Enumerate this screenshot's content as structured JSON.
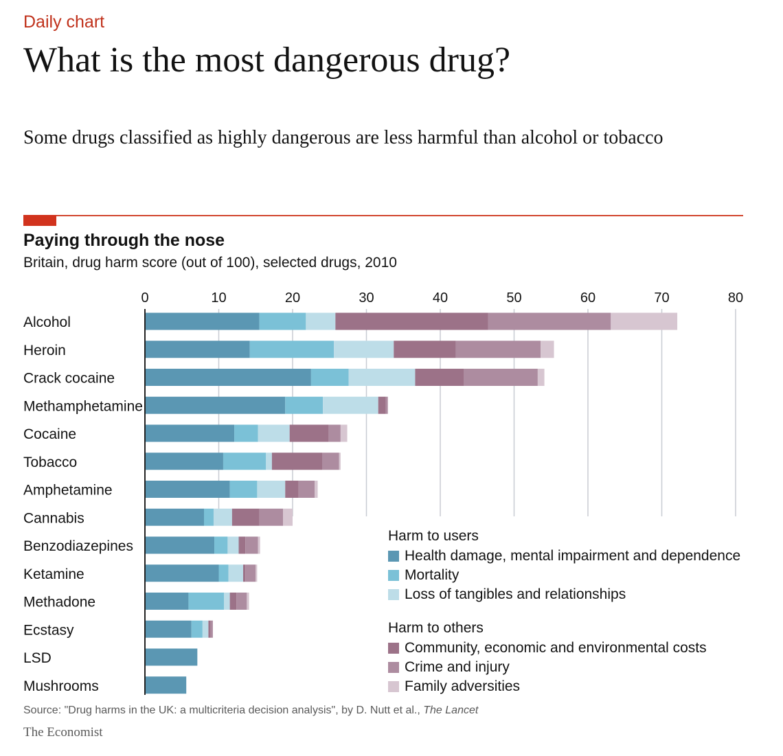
{
  "kicker": "Daily chart",
  "headline": "What is the most dangerous drug?",
  "standfirst": "Some drugs classified as highly dangerous are less harmful than alcohol or tobacco",
  "source": {
    "prefix": "Source: \"Drug harms in the UK: a multicriteria decision analysis\", by D. Nutt et al., ",
    "journal": "The Lancet"
  },
  "brand": "The Economist",
  "colors": {
    "accent": "#c0311b",
    "health": "#5b97b3",
    "mortality": "#7bc1d7",
    "tangibles": "#bddde8",
    "community": "#9c7288",
    "crime": "#ad8ca0",
    "family": "#d7c6d1",
    "grid": "#c8ccd2"
  },
  "chart_data": {
    "type": "bar",
    "orientation": "horizontal",
    "stacked": true,
    "title": "Paying through the nose",
    "subtitle": "Britain, drug harm score (out of 100), selected drugs, 2010",
    "xlim": [
      0,
      80
    ],
    "xticks": [
      "0",
      "10",
      "20",
      "30",
      "40",
      "50",
      "60",
      "70",
      "80"
    ],
    "grid": true,
    "legend_position": "bottom-right",
    "categories": [
      "Alcohol",
      "Heroin",
      "Crack cocaine",
      "Methamphetamine",
      "Cocaine",
      "Tobacco",
      "Amphetamine",
      "Cannabis",
      "Benzodiazepines",
      "Ketamine",
      "Methadone",
      "Ecstasy",
      "LSD",
      "Mushrooms"
    ],
    "groups": [
      {
        "name": "Harm to users",
        "series": [
          {
            "name": "Health damage, mental impairment and dependence",
            "color_key": "health",
            "values": [
              15.5,
              14.2,
              22.5,
              19.0,
              12.1,
              10.6,
              11.5,
              8.0,
              9.4,
              10.0,
              5.9,
              6.3,
              7.1,
              5.6
            ]
          },
          {
            "name": "Mortality",
            "color_key": "mortality",
            "values": [
              6.3,
              11.4,
              5.1,
              5.1,
              3.2,
              5.8,
              3.7,
              1.3,
              1.8,
              1.3,
              4.8,
              1.5,
              0.0,
              0.0
            ]
          },
          {
            "name": "Loss of tangibles and relationships",
            "color_key": "tangibles",
            "values": [
              4.0,
              8.1,
              9.0,
              7.5,
              4.3,
              0.8,
              3.8,
              2.5,
              1.5,
              2.0,
              0.8,
              0.8,
              0.0,
              0.0
            ]
          }
        ]
      },
      {
        "name": "Harm to others",
        "series": [
          {
            "name": "Community, economic and environmental costs",
            "color_key": "community",
            "values": [
              20.7,
              8.4,
              6.6,
              1.0,
              5.3,
              6.8,
              1.8,
              3.7,
              0.9,
              0.3,
              0.9,
              0.3,
              0.0,
              0.0
            ]
          },
          {
            "name": "Crime and injury",
            "color_key": "crime",
            "values": [
              16.6,
              11.5,
              10.0,
              0.3,
              1.6,
              2.3,
              2.2,
              3.2,
              1.7,
              1.4,
              1.4,
              0.3,
              0.0,
              0.0
            ]
          },
          {
            "name": "Family adversities",
            "color_key": "family",
            "values": [
              9.0,
              1.8,
              0.9,
              0.0,
              0.9,
              0.2,
              0.4,
              1.3,
              0.3,
              0.2,
              0.3,
              0.0,
              0.0,
              0.0
            ]
          }
        ]
      }
    ]
  }
}
